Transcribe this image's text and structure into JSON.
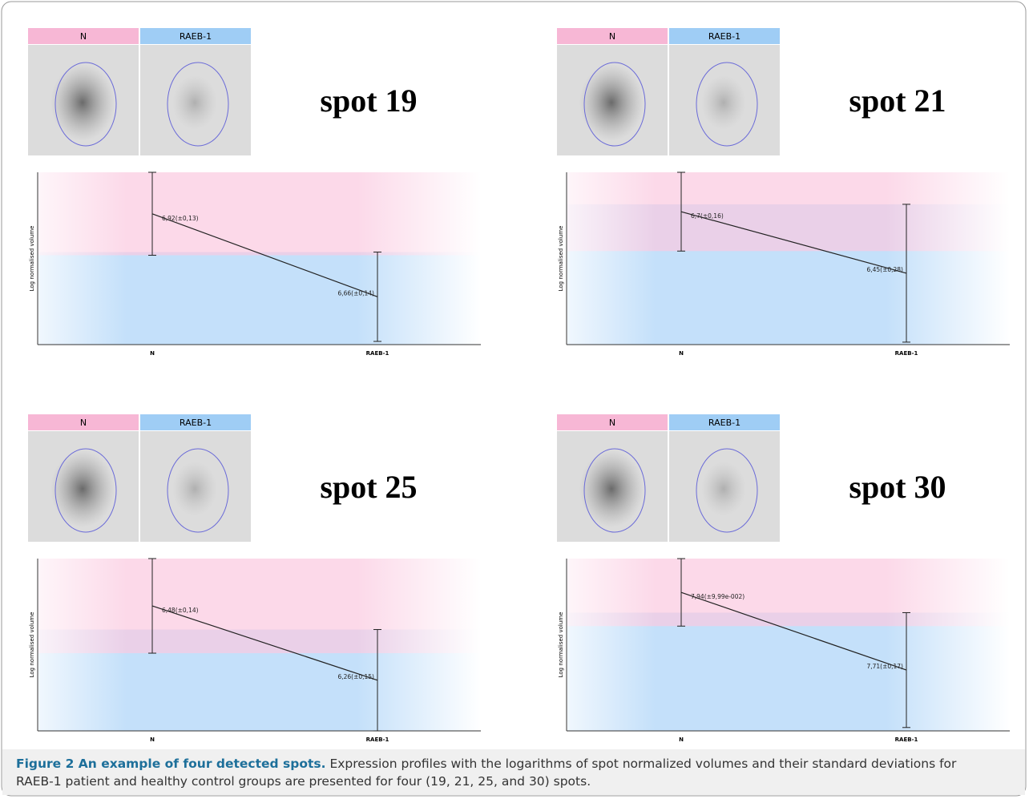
{
  "chart_data": [
    {
      "type": "line",
      "title": "spot 19",
      "image_labels": [
        "N",
        "RAEB-1"
      ],
      "y_label": "Log normalised volume",
      "categories": [
        "N",
        "RAEB-1"
      ],
      "ylim": [
        6.51,
        7.05
      ],
      "series": [
        {
          "values": [
            6.92,
            6.66
          ],
          "errors": [
            0.13,
            0.14
          ],
          "value_labels": [
            "6,92(±0,13)",
            "6,66(±0,14)"
          ],
          "color": "#222222"
        }
      ],
      "band_colors": [
        "#fbc9df",
        "#c4e0fa"
      ]
    },
    {
      "type": "line",
      "title": "spot 21",
      "image_labels": [
        "N",
        "RAEB-1"
      ],
      "y_label": "Log normalised volume",
      "categories": [
        "N",
        "RAEB-1"
      ],
      "ylim": [
        6.16,
        6.86
      ],
      "series": [
        {
          "values": [
            6.7,
            6.45
          ],
          "errors": [
            0.16,
            0.28
          ],
          "value_labels": [
            "6,7(±0,16)",
            "6,45(±0,28)"
          ],
          "color": "#222222"
        }
      ],
      "band_colors": [
        "#fbc9df",
        "#c4e0fa"
      ]
    },
    {
      "type": "line",
      "title": "spot 25",
      "image_labels": [
        "N",
        "RAEB-1"
      ],
      "y_label": "Log normalised volume",
      "categories": [
        "N",
        "RAEB-1"
      ],
      "ylim": [
        6.11,
        6.62
      ],
      "series": [
        {
          "values": [
            6.48,
            6.26
          ],
          "errors": [
            0.14,
            0.15
          ],
          "value_labels": [
            "6,48(±0,14)",
            "6,26(±0,15)"
          ],
          "color": "#222222"
        }
      ],
      "band_colors": [
        "#fbc9df",
        "#c4e0fa"
      ]
    },
    {
      "type": "line",
      "title": "spot 30",
      "image_labels": [
        "N",
        "RAEB-1"
      ],
      "y_label": "Log normalised volume",
      "categories": [
        "N",
        "RAEB-1"
      ],
      "ylim": [
        7.53,
        8.04
      ],
      "series": [
        {
          "values": [
            7.94,
            7.71
          ],
          "errors": [
            0.0999,
            0.17
          ],
          "value_labels": [
            "7,94(±9,99e-002)",
            "7,71(±0,17)"
          ],
          "color": "#222222"
        }
      ],
      "band_colors": [
        "#fbc9df",
        "#c4e0fa"
      ]
    }
  ],
  "caption": {
    "label": "Figure 2 An example of four detected spots.",
    "text": "Expression profiles with the logarithms of spot normalized volumes and their standard deviations for RAEB-1 patient and healthy control groups are presented for four (19, 21, 25, and 30) spots."
  }
}
